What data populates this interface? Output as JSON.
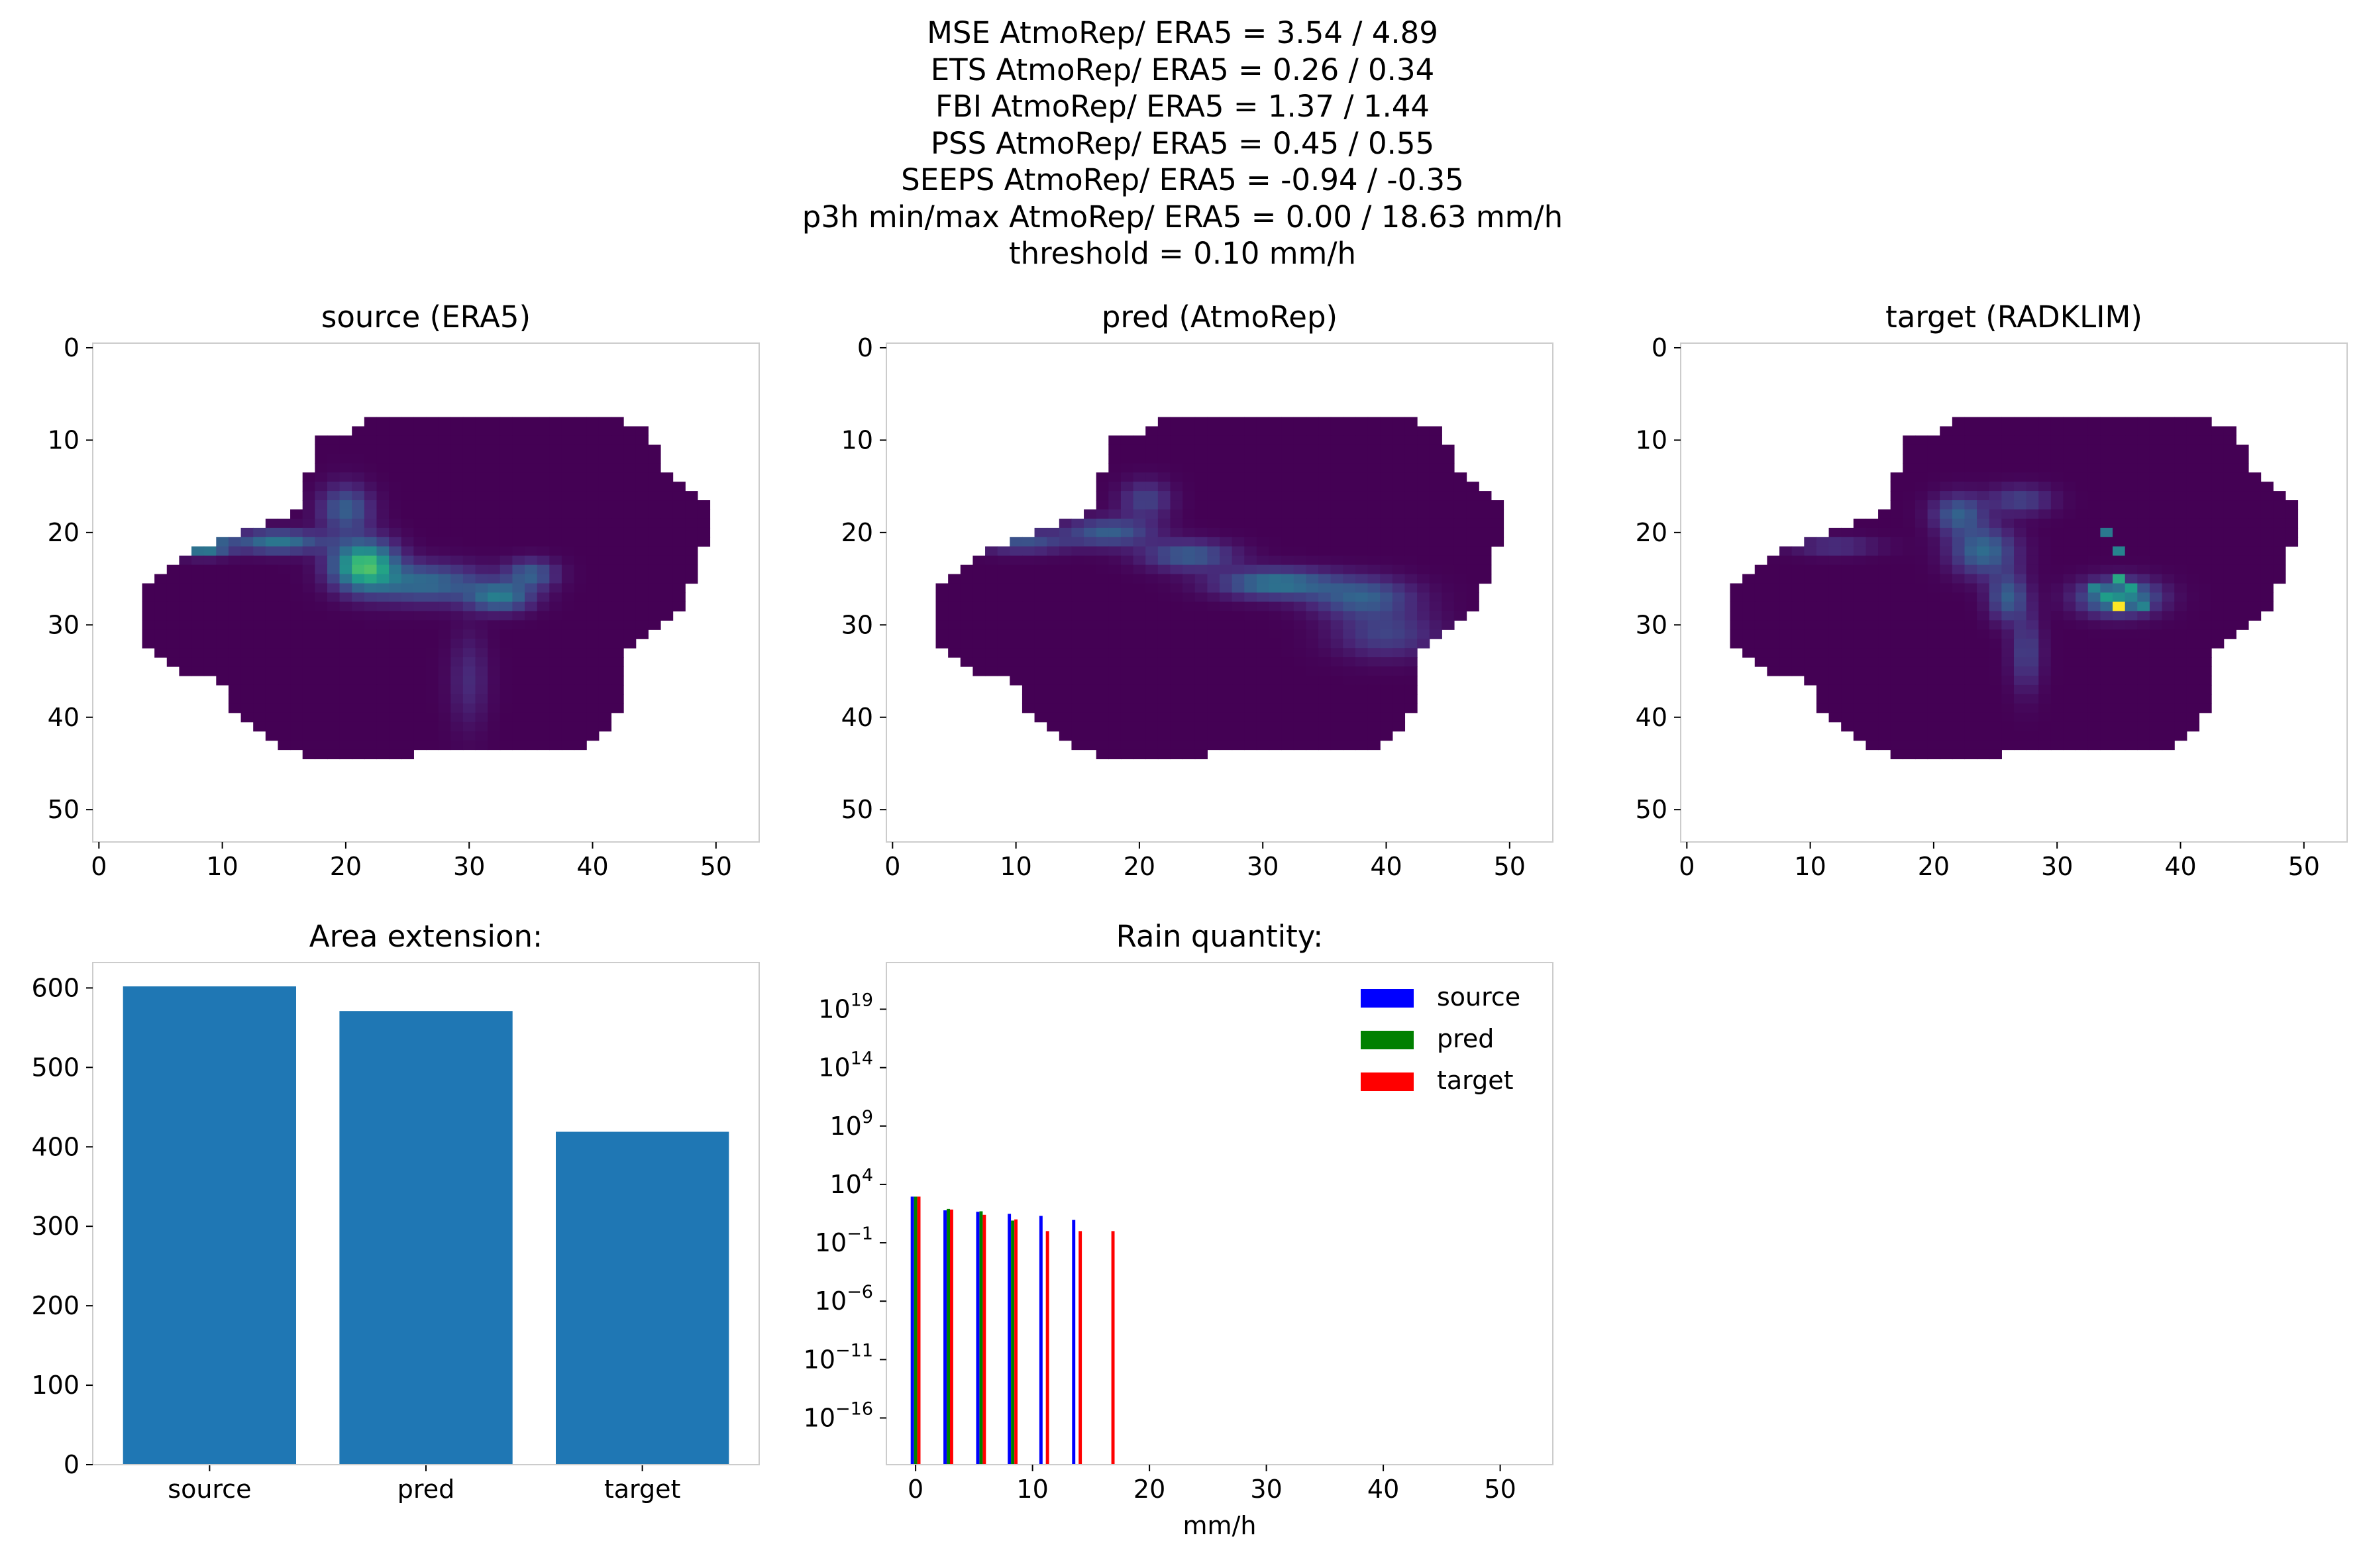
{
  "suptitle": {
    "lines": [
      "MSE AtmoRep/ ERA5 = 3.54 / 4.89",
      "ETS AtmoRep/ ERA5 = 0.26 / 0.34",
      "FBI AtmoRep/ ERA5 = 1.37 / 1.44",
      "PSS AtmoRep/ ERA5 = 0.45 / 0.55",
      "SEEPS AtmoRep/ ERA5 = -0.94 / -0.35",
      "p3h min/max AtmoRep/ ERA5 = 0.00 / 18.63 mm/h",
      "threshold = 0.10 mm/h"
    ]
  },
  "chart_data": [
    {
      "type": "heatmap",
      "title": "source (ERA5)",
      "xticks": [
        0,
        10,
        20,
        30,
        40,
        50
      ],
      "yticks": [
        0,
        10,
        20,
        30,
        40,
        50
      ],
      "xlim": [
        -0.5,
        53.5
      ],
      "ylim": [
        53.5,
        -0.5
      ],
      "grid_size": [
        54,
        54
      ],
      "colormap": "viridis",
      "hotspots": [
        {
          "x": 21.5,
          "y": 23.5,
          "rx": 2.5,
          "ry": 2.5,
          "v": 0.7
        },
        {
          "x": 8.5,
          "y": 21.5,
          "rx": 2.0,
          "ry": 1.0,
          "v": 0.5
        },
        {
          "x": 14.5,
          "y": 21.0,
          "rx": 3.5,
          "ry": 1.2,
          "v": 0.4
        },
        {
          "x": 26.5,
          "y": 25.5,
          "rx": 4.5,
          "ry": 2.0,
          "v": 0.35
        },
        {
          "x": 32.5,
          "y": 27.0,
          "rx": 2.5,
          "ry": 1.5,
          "v": 0.4
        },
        {
          "x": 35.0,
          "y": 24.5,
          "rx": 2.0,
          "ry": 1.5,
          "v": 0.3
        },
        {
          "x": 20.0,
          "y": 17.5,
          "rx": 2.0,
          "ry": 2.5,
          "v": 0.3
        },
        {
          "x": 30.0,
          "y": 36.0,
          "rx": 1.5,
          "ry": 5.0,
          "v": 0.12
        }
      ]
    },
    {
      "type": "heatmap",
      "title": "pred (AtmoRep)",
      "xticks": [
        0,
        10,
        20,
        30,
        40,
        50
      ],
      "yticks": [
        0,
        10,
        20,
        30,
        40,
        50
      ],
      "xlim": [
        -0.5,
        53.5
      ],
      "ylim": [
        53.5,
        -0.5
      ],
      "grid_size": [
        54,
        54
      ],
      "colormap": "viridis",
      "hotspots": [
        {
          "x": 10.5,
          "y": 21.0,
          "rx": 3.5,
          "ry": 1.2,
          "v": 0.25
        },
        {
          "x": 17.5,
          "y": 20.0,
          "rx": 3.5,
          "ry": 1.5,
          "v": 0.3
        },
        {
          "x": 24.0,
          "y": 22.5,
          "rx": 3.5,
          "ry": 1.5,
          "v": 0.3
        },
        {
          "x": 31.0,
          "y": 25.5,
          "rx": 4.5,
          "ry": 1.5,
          "v": 0.4
        },
        {
          "x": 38.0,
          "y": 27.0,
          "rx": 4.0,
          "ry": 2.0,
          "v": 0.3
        },
        {
          "x": 40.0,
          "y": 31.0,
          "rx": 4.0,
          "ry": 2.5,
          "v": 0.2
        },
        {
          "x": 20.5,
          "y": 16.5,
          "rx": 2.0,
          "ry": 2.0,
          "v": 0.2
        }
      ]
    },
    {
      "type": "heatmap",
      "title": "target (RADKLIM)",
      "xticks": [
        0,
        10,
        20,
        30,
        40,
        50
      ],
      "yticks": [
        0,
        10,
        20,
        30,
        40,
        50
      ],
      "xlim": [
        -0.5,
        53.5
      ],
      "ylim": [
        53.5,
        -0.5
      ],
      "grid_size": [
        54,
        54
      ],
      "colormap": "viridis",
      "hotspots": [
        {
          "x": 22.0,
          "y": 18.0,
          "rx": 2.0,
          "ry": 2.0,
          "v": 0.3
        },
        {
          "x": 24.0,
          "y": 22.0,
          "rx": 2.5,
          "ry": 2.5,
          "v": 0.35
        },
        {
          "x": 26.0,
          "y": 27.0,
          "rx": 1.5,
          "ry": 2.5,
          "v": 0.3
        },
        {
          "x": 27.5,
          "y": 33.0,
          "rx": 1.2,
          "ry": 4.0,
          "v": 0.2
        },
        {
          "x": 12.0,
          "y": 21.5,
          "rx": 3.5,
          "ry": 1.0,
          "v": 0.15
        },
        {
          "x": 27.0,
          "y": 16.5,
          "rx": 2.5,
          "ry": 1.5,
          "v": 0.2
        },
        {
          "x": 35.0,
          "y": 27.0,
          "rx": 3.0,
          "ry": 1.8,
          "v": 0.5
        }
      ],
      "spot_values": [
        {
          "x": 35,
          "y": 28,
          "v": 1.0
        },
        {
          "x": 35,
          "y": 25,
          "v": 0.6
        },
        {
          "x": 34,
          "y": 27,
          "v": 0.55
        },
        {
          "x": 36,
          "y": 26,
          "v": 0.55
        },
        {
          "x": 33,
          "y": 26,
          "v": 0.45
        },
        {
          "x": 35,
          "y": 22,
          "v": 0.45
        },
        {
          "x": 34,
          "y": 20,
          "v": 0.4
        },
        {
          "x": 37,
          "y": 28,
          "v": 0.45
        }
      ]
    },
    {
      "type": "bar",
      "title": "Area extension:",
      "categories": [
        "source",
        "pred",
        "target"
      ],
      "values": [
        602,
        571,
        419
      ],
      "yticks": [
        0,
        100,
        200,
        300,
        400,
        500,
        600
      ],
      "ylim": [
        0,
        632
      ],
      "color": "#1f77b4"
    },
    {
      "type": "bar",
      "title": "Rain quantity:",
      "xlabel": "mm/h",
      "yscale": "log",
      "xlim": [
        -2.5,
        54.5
      ],
      "ylim_exponent": [
        -20,
        23
      ],
      "xticks": [
        0,
        10,
        20,
        30,
        40,
        50
      ],
      "yticks_exponent": [
        -16,
        -11,
        -6,
        -1,
        4,
        9,
        14,
        19
      ],
      "legend_position": "upper right",
      "series": [
        {
          "name": "source",
          "color": "#0000ff",
          "x": [
            0,
            2.8,
            5.6,
            8.3,
            11.0,
            13.8
          ],
          "values": [
            900,
            60,
            45,
            30,
            20,
            9
          ]
        },
        {
          "name": "pred",
          "color": "#008000",
          "x": [
            0,
            2.8,
            5.6,
            8.3
          ],
          "values": [
            900,
            80,
            50,
            8
          ]
        },
        {
          "name": "target",
          "color": "#ff0000",
          "x": [
            0,
            2.8,
            5.6,
            8.3,
            11.0,
            13.8,
            16.6
          ],
          "values": [
            900,
            70,
            25,
            10,
            1,
            1,
            1
          ]
        }
      ]
    }
  ]
}
